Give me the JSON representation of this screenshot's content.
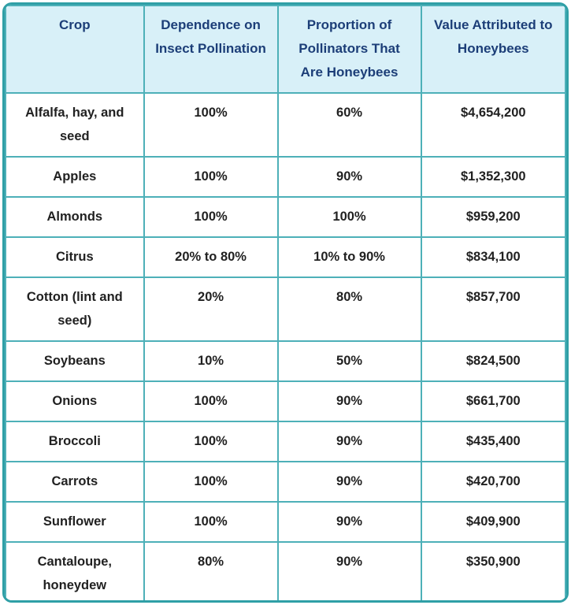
{
  "colors": {
    "outer_border": "#2f9fa6",
    "inner_border": "#4db0b8",
    "header_bg": "#d8f0f8",
    "header_text": "#1c3e78",
    "body_text": "#212121",
    "body_bg": "#ffffff"
  },
  "table": {
    "columns": [
      {
        "label": "Crop"
      },
      {
        "label": "Dependence on Insect Pollination"
      },
      {
        "label": "Proportion of Pollinators That Are Honeybees"
      },
      {
        "label": "Value Attributed to Honeybees"
      }
    ],
    "rows": [
      {
        "crop": "Alfalfa, hay, and seed",
        "dependence": "100%",
        "proportion": "60%",
        "value": "$4,654,200"
      },
      {
        "crop": "Apples",
        "dependence": "100%",
        "proportion": "90%",
        "value": "$1,352,300"
      },
      {
        "crop": "Almonds",
        "dependence": "100%",
        "proportion": "100%",
        "value": "$959,200"
      },
      {
        "crop": "Citrus",
        "dependence": "20% to 80%",
        "proportion": "10% to 90%",
        "value": "$834,100"
      },
      {
        "crop": "Cotton (lint and seed)",
        "dependence": "20%",
        "proportion": "80%",
        "value": "$857,700"
      },
      {
        "crop": "Soybeans",
        "dependence": "10%",
        "proportion": "50%",
        "value": "$824,500"
      },
      {
        "crop": "Onions",
        "dependence": "100%",
        "proportion": "90%",
        "value": "$661,700"
      },
      {
        "crop": "Broccoli",
        "dependence": "100%",
        "proportion": "90%",
        "value": "$435,400"
      },
      {
        "crop": "Carrots",
        "dependence": "100%",
        "proportion": "90%",
        "value": "$420,700"
      },
      {
        "crop": "Sunflower",
        "dependence": "100%",
        "proportion": "90%",
        "value": "$409,900"
      },
      {
        "crop": "Cantaloupe, honeydew",
        "dependence": "80%",
        "proportion": "90%",
        "value": "$350,900"
      }
    ]
  },
  "chart_data": {
    "type": "table",
    "title": "",
    "columns": [
      "Crop",
      "Dependence on Insect Pollination",
      "Proportion of Pollinators That Are Honeybees",
      "Value Attributed to Honeybees"
    ],
    "rows": [
      [
        "Alfalfa, hay, and seed",
        "100%",
        "60%",
        "$4,654,200"
      ],
      [
        "Apples",
        "100%",
        "90%",
        "$1,352,300"
      ],
      [
        "Almonds",
        "100%",
        "100%",
        "$959,200"
      ],
      [
        "Citrus",
        "20% to 80%",
        "10% to 90%",
        "$834,100"
      ],
      [
        "Cotton (lint and seed)",
        "20%",
        "80%",
        "$857,700"
      ],
      [
        "Soybeans",
        "10%",
        "50%",
        "$824,500"
      ],
      [
        "Onions",
        "100%",
        "90%",
        "$661,700"
      ],
      [
        "Broccoli",
        "100%",
        "90%",
        "$435,400"
      ],
      [
        "Carrots",
        "100%",
        "90%",
        "$420,700"
      ],
      [
        "Sunflower",
        "100%",
        "90%",
        "$409,900"
      ],
      [
        "Cantaloupe, honeydew",
        "80%",
        "90%",
        "$350,900"
      ]
    ]
  }
}
